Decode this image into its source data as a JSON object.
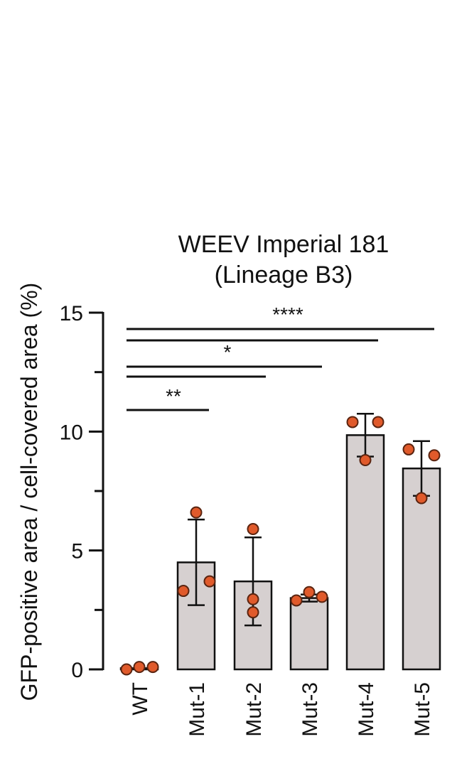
{
  "chart_data": {
    "type": "bar",
    "title": [
      "WEEV Imperial 181",
      "(Lineage B3)"
    ],
    "xlabel": "",
    "ylabel": "GFP-positive area / cell-covered area (%)",
    "ylim": [
      0,
      15
    ],
    "yticks": [
      0,
      5,
      10,
      15
    ],
    "categories": [
      "WT",
      "Mut-1",
      "Mut-2",
      "Mut-3",
      "Mut-4",
      "Mut-5"
    ],
    "values": [
      0.05,
      4.5,
      3.7,
      3.0,
      9.85,
      8.45
    ],
    "error": [
      0.0,
      1.8,
      1.85,
      0.15,
      0.9,
      1.15
    ],
    "points": [
      [
        0.0,
        0.1,
        0.1
      ],
      [
        6.6,
        3.3,
        3.7
      ],
      [
        5.9,
        2.95,
        2.4
      ],
      [
        2.9,
        3.25,
        3.05
      ],
      [
        10.4,
        10.4,
        8.8
      ],
      [
        9.25,
        9.0,
        7.2
      ]
    ],
    "significance": [
      {
        "from": "WT",
        "to": "Mut-1",
        "label": "**"
      },
      {
        "from": "WT",
        "to": "Mut-2",
        "label": ""
      },
      {
        "from": "WT",
        "to": "Mut-3",
        "label": "*"
      },
      {
        "from": "WT",
        "to": "Mut-4",
        "label": ""
      },
      {
        "from": "WT",
        "to": "Mut-5",
        "label": "****"
      }
    ],
    "colors": {
      "bar_fill": "#d6d0d0",
      "bar_stroke": "#111111",
      "point_fill": "#e05a2b",
      "point_stroke": "#5a2410"
    }
  }
}
